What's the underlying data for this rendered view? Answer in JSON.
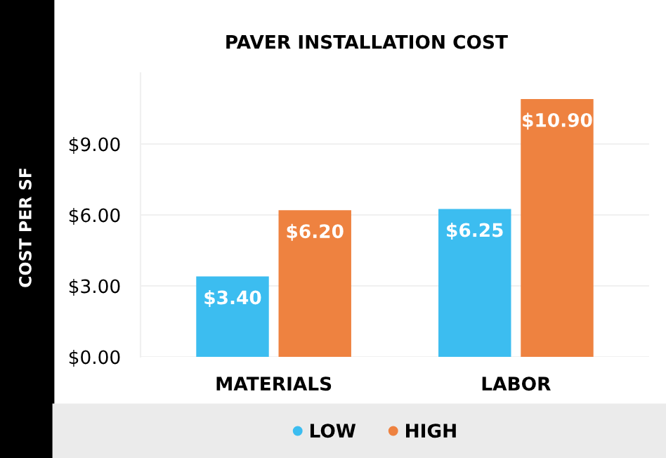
{
  "chart_data": {
    "type": "bar",
    "title": "PAVER INSTALLATION COST",
    "ylabel": "COST PER SF",
    "categories": [
      "MATERIALS",
      "LABOR"
    ],
    "series": [
      {
        "name": "LOW",
        "color": "#3cbdf0",
        "values": [
          3.4,
          6.25
        ],
        "value_labels": [
          "$3.40",
          "$6.25"
        ]
      },
      {
        "name": "HIGH",
        "color": "#ee8240",
        "values": [
          6.2,
          10.9
        ],
        "value_labels": [
          "$6.20",
          "$10.90"
        ]
      }
    ],
    "ylim": [
      0,
      12
    ],
    "yticks": [
      {
        "value": 0,
        "label": "$0.00"
      },
      {
        "value": 3,
        "label": "$3.00"
      },
      {
        "value": 6,
        "label": "$6.00"
      },
      {
        "value": 9,
        "label": "$9.00"
      }
    ],
    "grid": "y",
    "legend": "bottom"
  }
}
